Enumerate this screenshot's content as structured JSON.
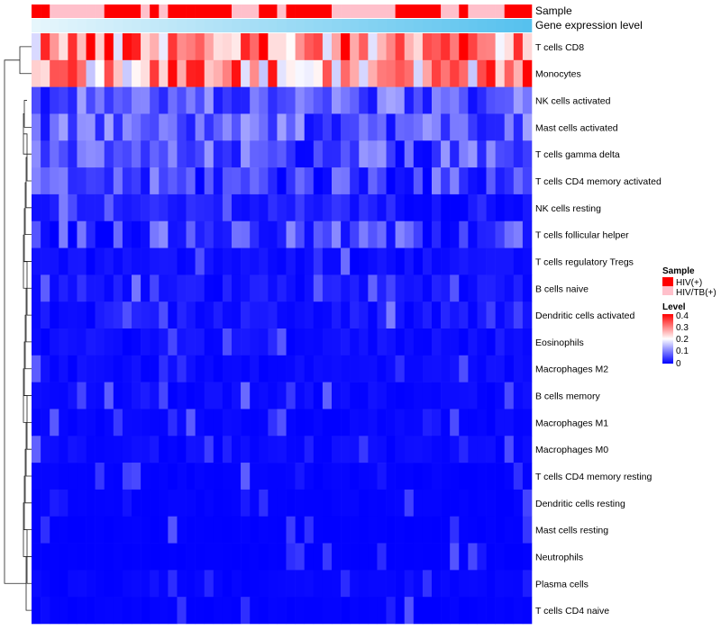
{
  "chart_data": {
    "type": "heatmap",
    "annotation_rows": [
      {
        "label": "Sample",
        "values": [
          "HIV(+)",
          "HIV(+)",
          "HIV/TB(+)",
          "HIV/TB(+)",
          "HIV/TB(+)",
          "HIV/TB(+)",
          "HIV/TB(+)",
          "HIV/TB(+)",
          "HIV(+)",
          "HIV(+)",
          "HIV(+)",
          "HIV(+)",
          "HIV/TB(+)",
          "HIV(+)",
          "HIV/TB(+)",
          "HIV(+)",
          "HIV(+)",
          "HIV(+)",
          "HIV(+)",
          "HIV(+)",
          "HIV(+)",
          "HIV(+)",
          "HIV/TB(+)",
          "HIV/TB(+)",
          "HIV/TB(+)",
          "HIV(+)",
          "HIV(+)",
          "HIV/TB(+)",
          "HIV(+)",
          "HIV(+)",
          "HIV(+)",
          "HIV(+)",
          "HIV(+)",
          "HIV/TB(+)",
          "HIV/TB(+)",
          "HIV/TB(+)",
          "HIV/TB(+)",
          "HIV/TB(+)",
          "HIV/TB(+)",
          "HIV/TB(+)",
          "HIV(+)",
          "HIV(+)",
          "HIV(+)",
          "HIV(+)",
          "HIV(+)",
          "HIV/TB(+)",
          "HIV/TB(+)",
          "HIV(+)",
          "HIV/TB(+)",
          "HIV/TB(+)",
          "HIV/TB(+)",
          "HIV/TB(+)",
          "HIV(+)",
          "HIV(+)",
          "HIV(+)"
        ]
      },
      {
        "label": "Gene expression level",
        "values": [
          0.0,
          0.019,
          0.037,
          0.056,
          0.074,
          0.093,
          0.111,
          0.13,
          0.148,
          0.167,
          0.185,
          0.204,
          0.222,
          0.241,
          0.259,
          0.278,
          0.296,
          0.315,
          0.333,
          0.352,
          0.37,
          0.389,
          0.407,
          0.426,
          0.444,
          0.463,
          0.481,
          0.5,
          0.519,
          0.537,
          0.556,
          0.574,
          0.593,
          0.611,
          0.63,
          0.648,
          0.667,
          0.685,
          0.704,
          0.722,
          0.741,
          0.759,
          0.778,
          0.796,
          0.815,
          0.833,
          0.852,
          0.87,
          0.889,
          0.907,
          0.926,
          0.944,
          0.963,
          0.981,
          1.0
        ]
      }
    ],
    "rows": [
      "T cells CD8",
      "Monocytes",
      "NK cells activated",
      "Mast cells activated",
      "T cells gamma delta",
      "T cells CD4 memory activated",
      "NK cells resting",
      "T cells follicular helper",
      "T cells regulatory  Tregs",
      "B cells naive",
      "Dendritic cells activated",
      "Eosinophils",
      "Macrophages M2",
      "B cells memory",
      "Macrophages M1",
      "Macrophages M0",
      "T cells CD4 memory resting",
      "Dendritic cells resting",
      "Mast cells resting",
      "Neutrophils",
      "Plasma cells",
      "T cells CD4 naive"
    ],
    "n_columns": 55,
    "row_base_levels": [
      0.3,
      0.28,
      0.07,
      0.07,
      0.06,
      0.05,
      0.04,
      0.05,
      0.02,
      0.03,
      0.03,
      0.02,
      0.015,
      0.015,
      0.01,
      0.015,
      0.005,
      0.005,
      0.003,
      0.002,
      0.008,
      0.004
    ],
    "color_scale": {
      "min": 0,
      "max": 0.4,
      "low": "#0000ff",
      "mid": "#ffffff",
      "mid_value": 0.2,
      "high": "#ff0000"
    },
    "legends": [
      {
        "title": "Sample",
        "items": [
          {
            "label": "HIV(+)",
            "color": "#ff0000"
          },
          {
            "label": "HIV/TB(+)",
            "color": "#ffc0cb"
          }
        ]
      },
      {
        "title": "Level",
        "ticks": [
          "0.4",
          "0.3",
          "0.2",
          "0.1",
          "0"
        ]
      }
    ],
    "annotation_gradient": {
      "low": "#e6f6fc",
      "high": "#56c1ee"
    }
  }
}
